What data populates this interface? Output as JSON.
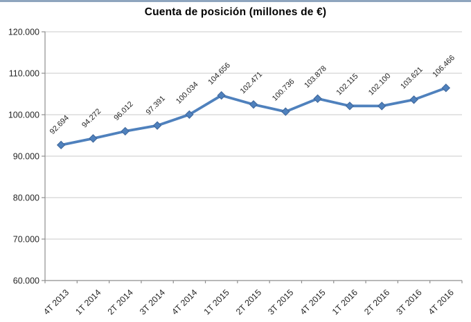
{
  "chart_data": {
    "type": "line",
    "title": "Cuenta de posición (millones de €)",
    "categories": [
      "4T 2013",
      "1T 2014",
      "2T 2014",
      "3T 2014",
      "4T 2014",
      "1T 2015",
      "2T 2015",
      "3T 2015",
      "4T 2015",
      "1T 2016",
      "2T 2016",
      "3T 2016",
      "4T 2016"
    ],
    "values": [
      92694,
      94272,
      96012,
      97391,
      100034,
      104656,
      102471,
      100736,
      103878,
      102115,
      102100,
      103621,
      106466
    ],
    "point_labels": [
      "92.694",
      "94.272",
      "96.012",
      "97.391",
      "100.034",
      "104.656",
      "102.471",
      "100.736",
      "103.878",
      "102.115",
      "102.100",
      "103.621",
      "106.466"
    ],
    "xlabel": "",
    "ylabel": "",
    "ylim": [
      60000,
      120000
    ],
    "ytick_step": 10000,
    "ytick_labels": [
      "60.000",
      "70.000",
      "80.000",
      "90.000",
      "100.000",
      "110.000",
      "120.000"
    ],
    "grid": true,
    "legend": "none",
    "colors": {
      "series": "#4F81BD",
      "marker_edge": "#3C6498",
      "gridline": "#C9C9C9",
      "axis": "#8E8E8E",
      "tick_label": "#262626",
      "data_label": "#262626",
      "title": "#000000",
      "top_border": "#8EA5BE",
      "background": "#FFFFFF"
    }
  }
}
